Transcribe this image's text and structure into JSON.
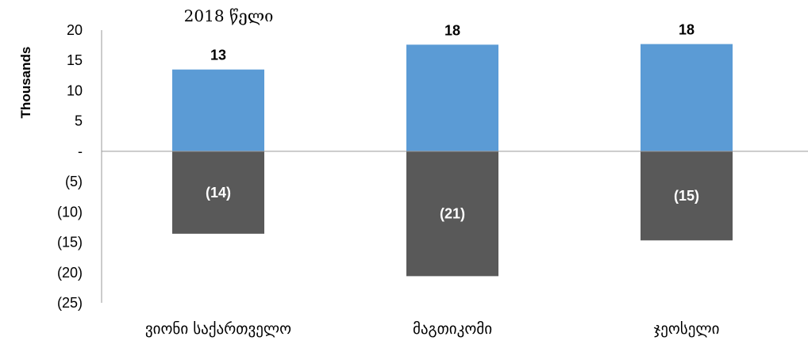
{
  "chart_data": {
    "type": "bar",
    "stacked": true,
    "title": "2018 წელი",
    "ylabel": "Thousands",
    "xlabel": "",
    "ylim": [
      -25,
      20
    ],
    "y_ticks": [
      20,
      15,
      10,
      5,
      0,
      -5,
      -10,
      -15,
      -20,
      -25
    ],
    "y_tick_labels": [
      "20",
      "15",
      "10",
      "5",
      "-",
      "(5)",
      "(10)",
      "(15)",
      "(20)",
      "(25)"
    ],
    "categories": [
      "ვიონი საქართველო",
      "მაგთიკომი",
      "ჯეოსელი"
    ],
    "series": [
      {
        "values": [
          13.5,
          17.6,
          17.7
        ],
        "labels": [
          "13",
          "18",
          "18"
        ],
        "color": "#5b9bd5"
      },
      {
        "values": [
          -13.6,
          -20.6,
          -14.7
        ],
        "labels": [
          "(14)",
          "(21)",
          "(15)"
        ],
        "color": "#595959"
      }
    ],
    "grid": false,
    "legend": "none"
  }
}
